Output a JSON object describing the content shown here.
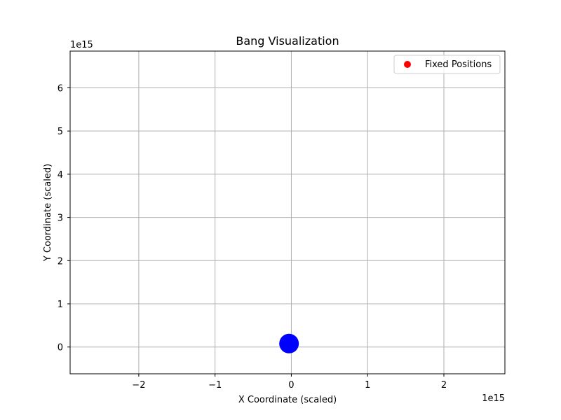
{
  "chart_data": {
    "type": "scatter",
    "title": "Bang Visualization",
    "xlabel": "X Coordinate (scaled)",
    "ylabel": "Y Coordinate (scaled)",
    "x_offset_label": "1e15",
    "y_offset_label": "1e15",
    "xlim": [
      -2.9,
      2.8
    ],
    "ylim": [
      -0.62,
      6.85
    ],
    "xticks": [
      -2,
      -1,
      0,
      1,
      2
    ],
    "xtick_labels": [
      "−2",
      "−1",
      "0",
      "1",
      "2"
    ],
    "yticks": [
      0,
      1,
      2,
      3,
      4,
      5,
      6
    ],
    "ytick_labels": [
      "0",
      "1",
      "2",
      "3",
      "4",
      "5",
      "6"
    ],
    "grid": true,
    "legend_position": "top-right",
    "series": [
      {
        "name": "Fixed Positions",
        "color": "#ff0000",
        "points": []
      },
      {
        "color": "#0000ff",
        "points": [
          {
            "x": -0.03,
            "y": 0.08
          }
        ]
      }
    ]
  }
}
